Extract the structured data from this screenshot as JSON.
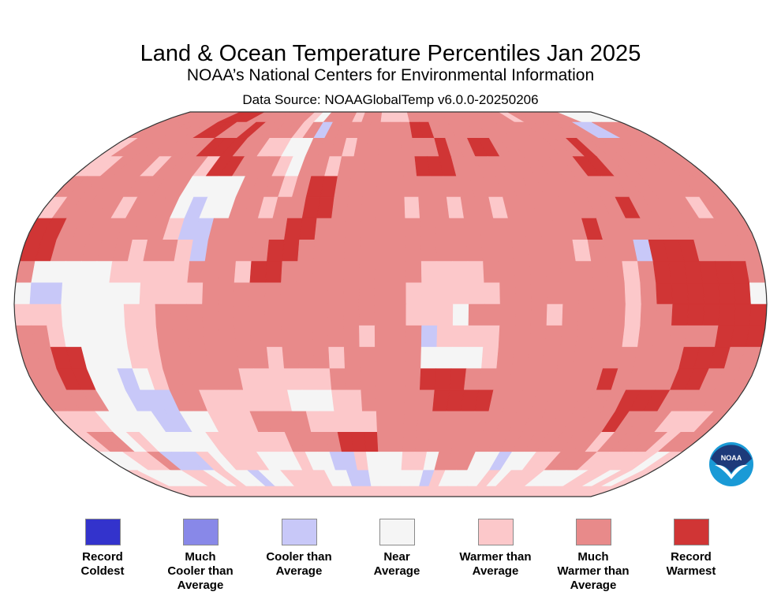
{
  "header": {
    "title": "Land & Ocean Temperature Percentiles Jan 2025",
    "subtitle": "NOAA’s National Centers for Environmental Information",
    "source": "Data Source: NOAAGlobalTemp v6.0.0-20250206"
  },
  "logo": {
    "icon": "noaa-logo",
    "text": "NOAA"
  },
  "legend": [
    {
      "label_lines": [
        "Record",
        "Coldest"
      ],
      "color": "#3333cc"
    },
    {
      "label_lines": [
        "Much",
        "Cooler than",
        "Average"
      ],
      "color": "#8888e8"
    },
    {
      "label_lines": [
        "Cooler than",
        "Average"
      ],
      "color": "#c8c8f8"
    },
    {
      "label_lines": [
        "Near",
        "Average"
      ],
      "color": "#f5f5f5"
    },
    {
      "label_lines": [
        "Warmer than",
        "Average"
      ],
      "color": "#fcc8ca"
    },
    {
      "label_lines": [
        "Much",
        "Warmer than",
        "Average"
      ],
      "color": "#e88a8a"
    },
    {
      "label_lines": [
        "Record",
        "Warmest"
      ],
      "color": "#d03535"
    }
  ],
  "chart_data": {
    "type": "heatmap",
    "title": "Land & Ocean Temperature Percentiles Jan 2025",
    "projection": "Robinson",
    "period": "Jan 2025",
    "categories": [
      "Record Coldest",
      "Much Cooler than Average",
      "Cooler than Average",
      "Near Average",
      "Warmer than Average",
      "Much Warmer than Average",
      "Record Warmest"
    ],
    "grid_note": "Approximate category per coarse lat/lon cell, rows north to south (lat 90N to 90S), columns west to east (lon 180W to 180E); index into categories",
    "rows": [
      "555555666555555435554554445555555555545555553333",
      "555555665565555452555555556655555555555555522555",
      "455555556665544335554555555565566555555565555555",
      "445554555466555435545555556665555555555665555555",
      "555555555333355545665555555555555555555555555555",
      "455554555323355455665555545545545555555565555455",
      "665555555422555556655555555555555555565555555555",
      "665555545542555566555555555555555555455526665555",
      "533333444445554665555555554444555555555456666665",
      "322333334444555555555555544444455555555456666663",
      "444333344555555555555555544435555545555455666666",
      "554333344555555555555545552444455555555455555666",
      "556633344555555545554555553333455555555555566655",
      "556633234555554444445555556665555555556555566555",
      "555533222554444443334455555666655555555566655555",
      "444333322334445555444445555555555555555565554445",
      "455343333344444455556665555555555555555545555455",
      "334452224344433343322433344355533233445554444434",
      "433334434332334444332233333243333434443333443434",
      "444444444444444444444444444444444444444444444444"
    ]
  }
}
